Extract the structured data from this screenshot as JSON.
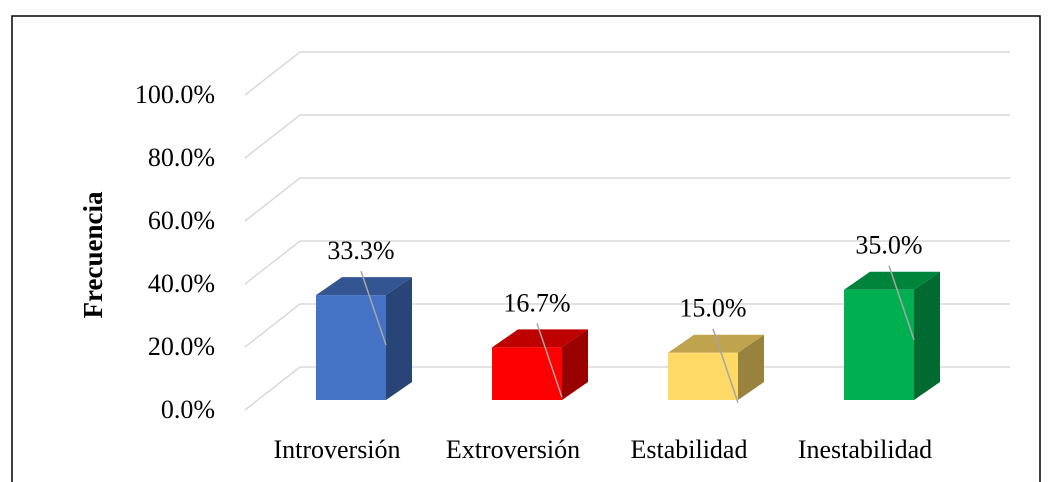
{
  "chart_data": {
    "type": "bar3d",
    "y_label": "Frecuencia",
    "categories": [
      "Introversión",
      "Extroversión",
      "Estabilidad",
      "Inestabilidad"
    ],
    "values": [
      33.3,
      16.7,
      15.0,
      35.0
    ],
    "value_labels": [
      "33.3%",
      "16.7%",
      "15.0%",
      "35.0%"
    ],
    "colors": [
      "#4472c4",
      "#ff0000",
      "#ffd966",
      "#00b050"
    ],
    "ylim": [
      0,
      100
    ],
    "yticks": [
      {
        "value": 0,
        "label": "0.0%"
      },
      {
        "value": 20,
        "label": "20.0%"
      },
      {
        "value": 40,
        "label": "40.0%"
      },
      {
        "value": 60,
        "label": "60.0%"
      },
      {
        "value": 80,
        "label": "80.0%"
      },
      {
        "value": 100,
        "label": "100.0%"
      }
    ],
    "grid": true
  }
}
